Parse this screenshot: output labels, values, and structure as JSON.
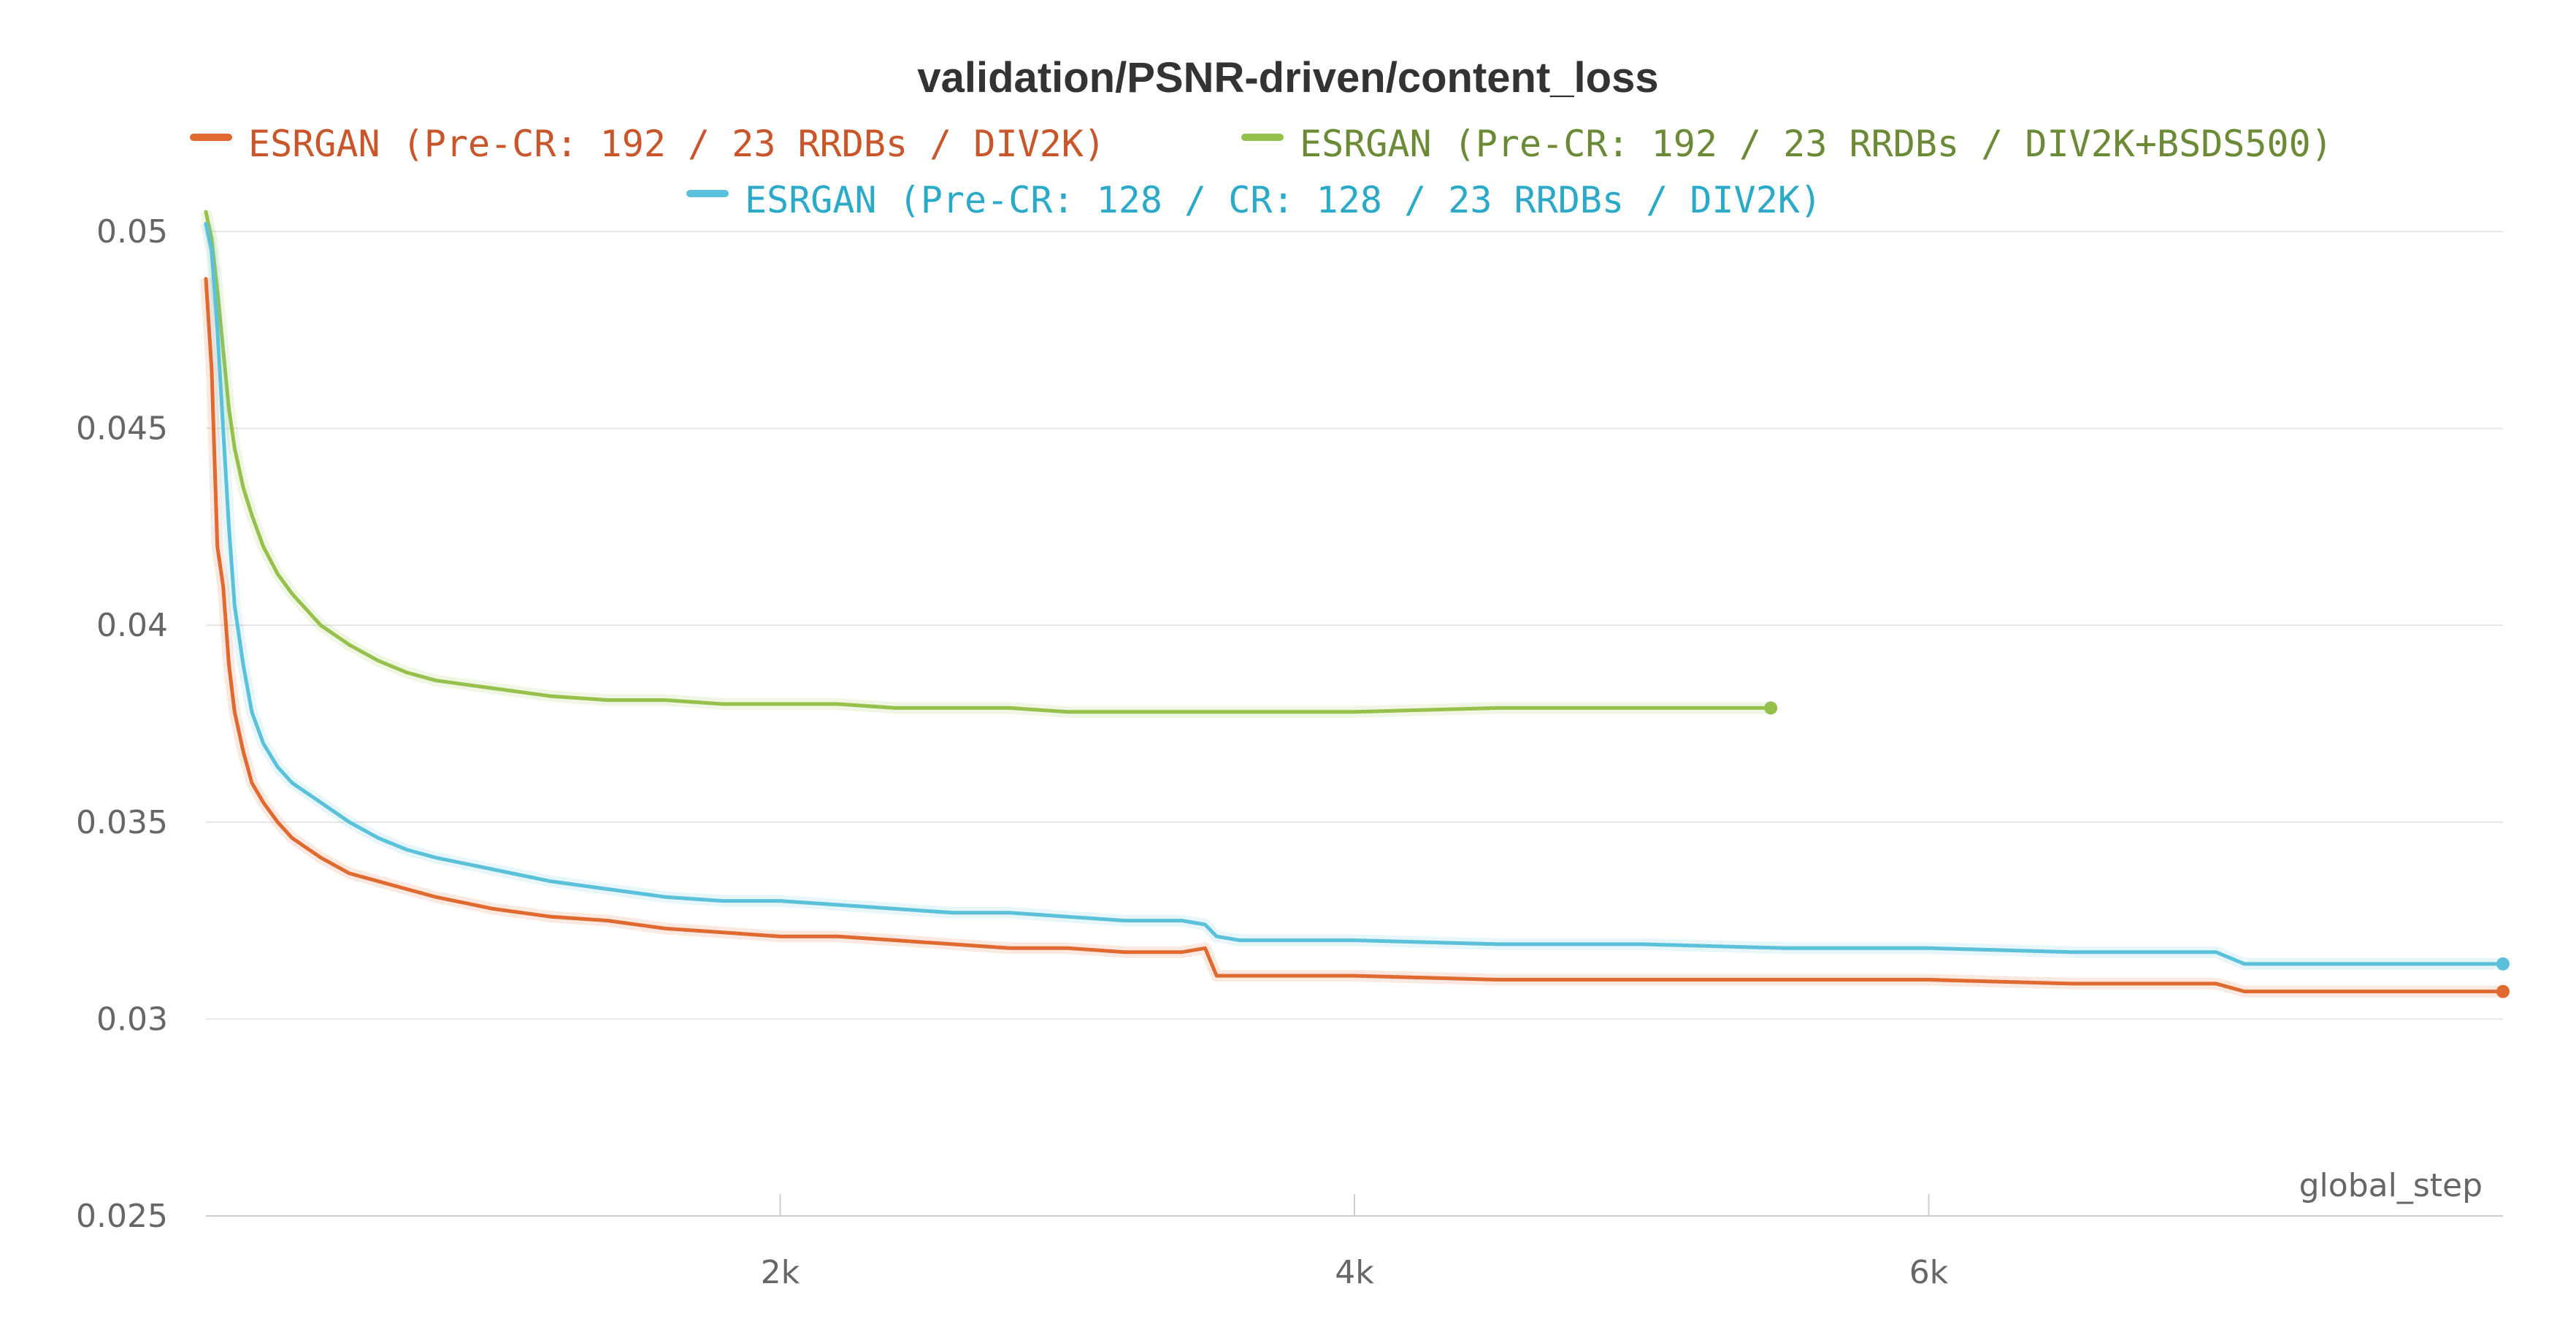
{
  "chart_data": {
    "type": "line",
    "title": "validation/PSNR-driven/content_loss",
    "xlabel": "global_step",
    "ylabel": "",
    "xlim": [
      0,
      8000
    ],
    "ylim": [
      0.025,
      0.0505
    ],
    "x_ticks": [
      {
        "value": 2000,
        "label": "2k"
      },
      {
        "value": 4000,
        "label": "4k"
      },
      {
        "value": 6000,
        "label": "6k"
      }
    ],
    "y_ticks": [
      {
        "value": 0.05,
        "label": "0.05"
      },
      {
        "value": 0.045,
        "label": "0.045"
      },
      {
        "value": 0.04,
        "label": "0.04"
      },
      {
        "value": 0.035,
        "label": "0.035"
      },
      {
        "value": 0.03,
        "label": "0.03"
      },
      {
        "value": 0.025,
        "label": "0.025"
      }
    ],
    "grid": true,
    "legend_position": "top",
    "series": [
      {
        "name": "ESRGAN (Pre-CR: 192 / 23 RRDBs / DIV2K)",
        "color": "#e0692f",
        "text_color": "#c9552a",
        "x": [
          0,
          20,
          40,
          60,
          80,
          100,
          130,
          160,
          200,
          250,
          300,
          400,
          500,
          600,
          700,
          800,
          1000,
          1200,
          1400,
          1600,
          1800,
          2000,
          2200,
          2400,
          2600,
          2800,
          3000,
          3200,
          3400,
          3480,
          3520,
          3600,
          4000,
          4500,
          5000,
          5500,
          6000,
          6500,
          7000,
          7100,
          7500,
          8000
        ],
        "y": [
          0.0488,
          0.0465,
          0.042,
          0.041,
          0.039,
          0.0378,
          0.0368,
          0.036,
          0.0355,
          0.035,
          0.0346,
          0.0341,
          0.0337,
          0.0335,
          0.0333,
          0.0331,
          0.0328,
          0.0326,
          0.0325,
          0.0323,
          0.0322,
          0.0321,
          0.0321,
          0.032,
          0.0319,
          0.0318,
          0.0318,
          0.0317,
          0.0317,
          0.0318,
          0.0311,
          0.0311,
          0.0311,
          0.031,
          0.031,
          0.031,
          0.031,
          0.0309,
          0.0309,
          0.0307,
          0.0307,
          0.0307
        ]
      },
      {
        "name": "ESRGAN (Pre-CR: 192 / 23 RRDBs / DIV2K+BSDS500)",
        "color": "#96c04c",
        "text_color": "#6a8a35",
        "x": [
          0,
          20,
          40,
          60,
          80,
          100,
          130,
          160,
          200,
          250,
          300,
          400,
          500,
          600,
          700,
          800,
          1000,
          1200,
          1400,
          1600,
          1800,
          2000,
          2200,
          2400,
          2600,
          2800,
          3000,
          3500,
          4000,
          4500,
          5000,
          5450
        ],
        "y": [
          0.0505,
          0.0498,
          0.0485,
          0.047,
          0.0455,
          0.0445,
          0.0435,
          0.0428,
          0.042,
          0.0413,
          0.0408,
          0.04,
          0.0395,
          0.0391,
          0.0388,
          0.0386,
          0.0384,
          0.0382,
          0.0381,
          0.0381,
          0.038,
          0.038,
          0.038,
          0.0379,
          0.0379,
          0.0379,
          0.0378,
          0.0378,
          0.0378,
          0.0379,
          0.0379,
          0.0379
        ]
      },
      {
        "name": "ESRGAN (Pre-CR: 128 / CR: 128 / 23 RRDBs / DIV2K)",
        "color": "#5bc0d9",
        "text_color": "#2aa9c9",
        "x": [
          0,
          20,
          40,
          60,
          80,
          100,
          130,
          160,
          200,
          250,
          300,
          400,
          500,
          600,
          700,
          800,
          1000,
          1200,
          1400,
          1600,
          1800,
          2000,
          2200,
          2400,
          2600,
          2800,
          3000,
          3200,
          3400,
          3480,
          3520,
          3600,
          4000,
          4500,
          5000,
          5500,
          6000,
          6500,
          7000,
          7100,
          7500,
          8000
        ],
        "y": [
          0.0502,
          0.0495,
          0.0475,
          0.045,
          0.0425,
          0.0405,
          0.039,
          0.0378,
          0.037,
          0.0364,
          0.036,
          0.0355,
          0.035,
          0.0346,
          0.0343,
          0.0341,
          0.0338,
          0.0335,
          0.0333,
          0.0331,
          0.033,
          0.033,
          0.0329,
          0.0328,
          0.0327,
          0.0327,
          0.0326,
          0.0325,
          0.0325,
          0.0324,
          0.0321,
          0.032,
          0.032,
          0.0319,
          0.0319,
          0.0318,
          0.0318,
          0.0317,
          0.0317,
          0.0314,
          0.0314,
          0.0314
        ]
      }
    ]
  }
}
